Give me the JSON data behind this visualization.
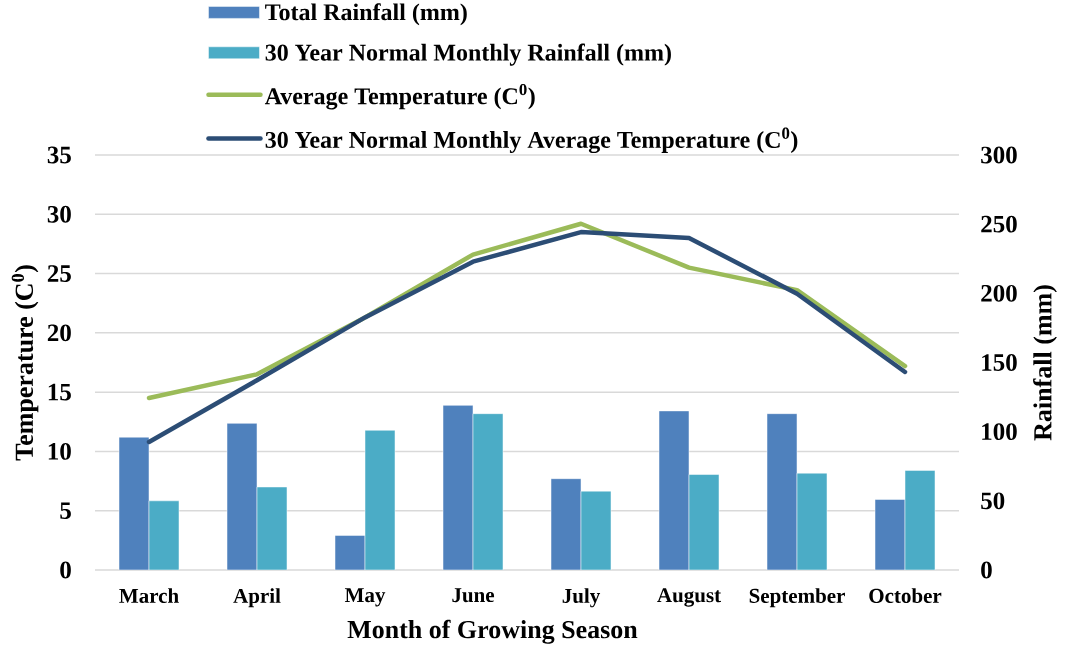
{
  "chart_data": {
    "type": "bar",
    "xlabel": "Month of Growing Season",
    "ylabel": "Temperature (C$^{0}$)",
    "y2label": "Rainfall (mm)",
    "categories": [
      "March",
      "April",
      "May",
      "June",
      "July",
      "August",
      "September",
      "October"
    ],
    "series": [
      {
        "name": "Total Rainfall (mm)",
        "color": "#4f81bd",
        "axis": "y2",
        "values": [
          96,
          106,
          25,
          119,
          66,
          115,
          113,
          51
        ]
      },
      {
        "name": "30 Year Normal Monthly Rainfall (mm)",
        "color": "#4bacc6",
        "axis": "y2",
        "values": [
          50,
          60,
          101,
          113,
          57,
          69,
          70,
          72
        ]
      },
      {
        "name": "Average Temperature (C$^{0}$)",
        "type": "line",
        "color": "#9bbb59",
        "values": [
          14.5,
          16.5,
          21.3,
          26.6,
          29.2,
          25.5,
          23.6,
          17.2
        ]
      },
      {
        "name": "30 Year Normal Monthly Average Temperature (C$^{0}$)",
        "type": "line",
        "color": "#2c4d75",
        "values": [
          10.8,
          16.0,
          21.3,
          26.0,
          28.5,
          28.0,
          23.3,
          16.7
        ]
      }
    ],
    "ylim": [
      0,
      35
    ],
    "yticks": [
      0,
      5,
      10,
      15,
      20,
      25,
      30,
      35
    ],
    "y2lim": [
      0,
      300
    ],
    "y2ticks": [
      0,
      50,
      100,
      150,
      200,
      250,
      300
    ],
    "grid": "y",
    "legend": "top"
  }
}
